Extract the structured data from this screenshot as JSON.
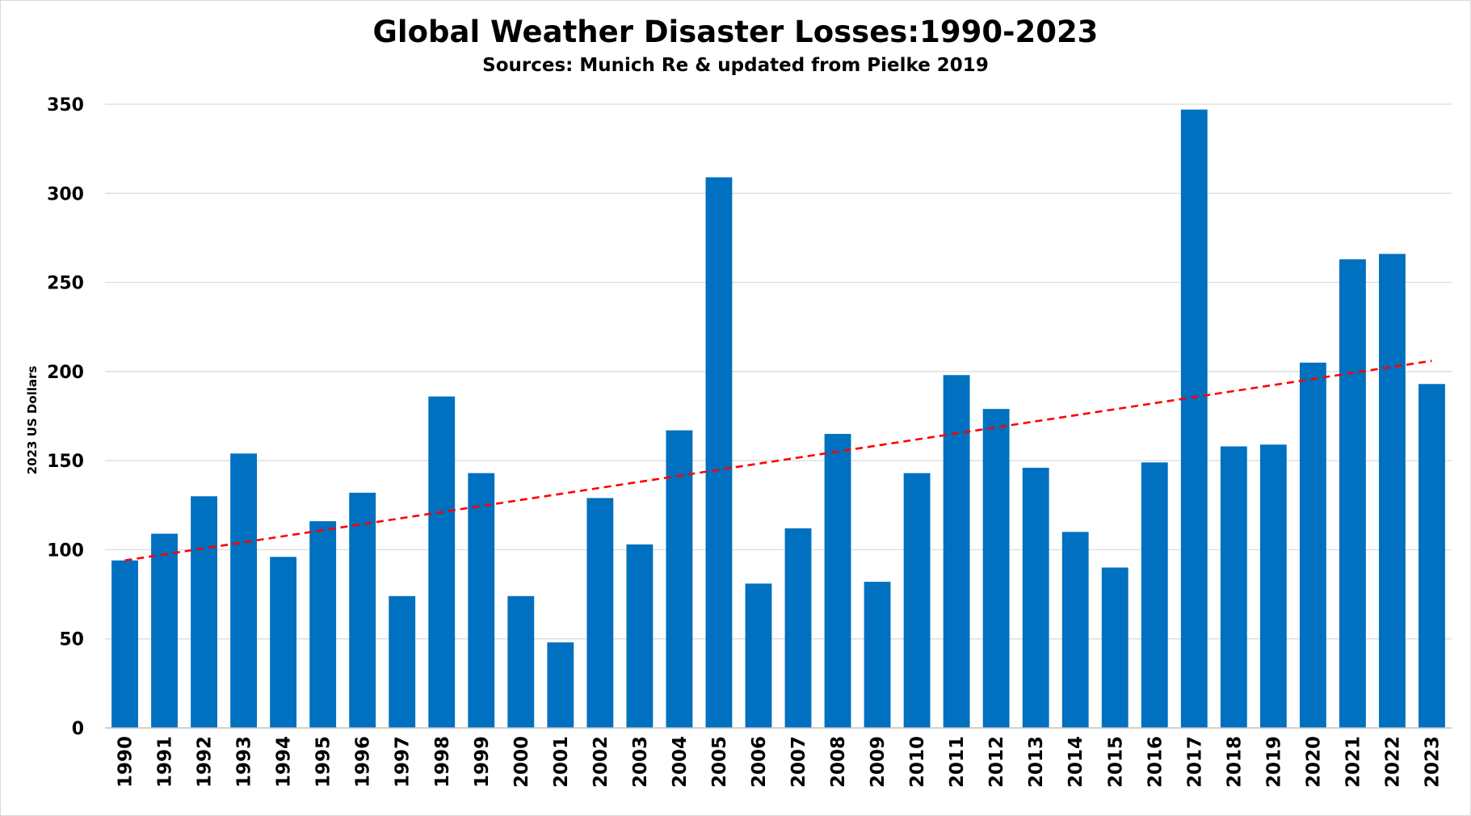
{
  "chart_data": {
    "type": "bar",
    "title": "Global Weather Disaster Losses:1990-2023",
    "subtitle": "Sources: Munich Re & updated from Pielke 2019",
    "xlabel": "",
    "ylabel": "2023 US Dollars",
    "ylim": [
      0,
      350
    ],
    "yticks": [
      0,
      50,
      100,
      150,
      200,
      250,
      300,
      350
    ],
    "grid": true,
    "bar_color": "#0070C0",
    "trendline": {
      "style": "dashed",
      "color": "#FF0000",
      "start": 94,
      "end": 206
    },
    "categories": [
      "1990",
      "1991",
      "1992",
      "1993",
      "1994",
      "1995",
      "1996",
      "1997",
      "1998",
      "1999",
      "2000",
      "2001",
      "2002",
      "2003",
      "2004",
      "2005",
      "2006",
      "2007",
      "2008",
      "2009",
      "2010",
      "2011",
      "2012",
      "2013",
      "2014",
      "2015",
      "2016",
      "2017",
      "2018",
      "2019",
      "2020",
      "2021",
      "2022",
      "2023"
    ],
    "values": [
      94,
      109,
      130,
      154,
      96,
      116,
      132,
      74,
      186,
      143,
      74,
      48,
      129,
      103,
      167,
      309,
      81,
      112,
      165,
      82,
      143,
      198,
      179,
      146,
      110,
      90,
      149,
      347,
      158,
      159,
      205,
      263,
      266,
      193
    ]
  }
}
